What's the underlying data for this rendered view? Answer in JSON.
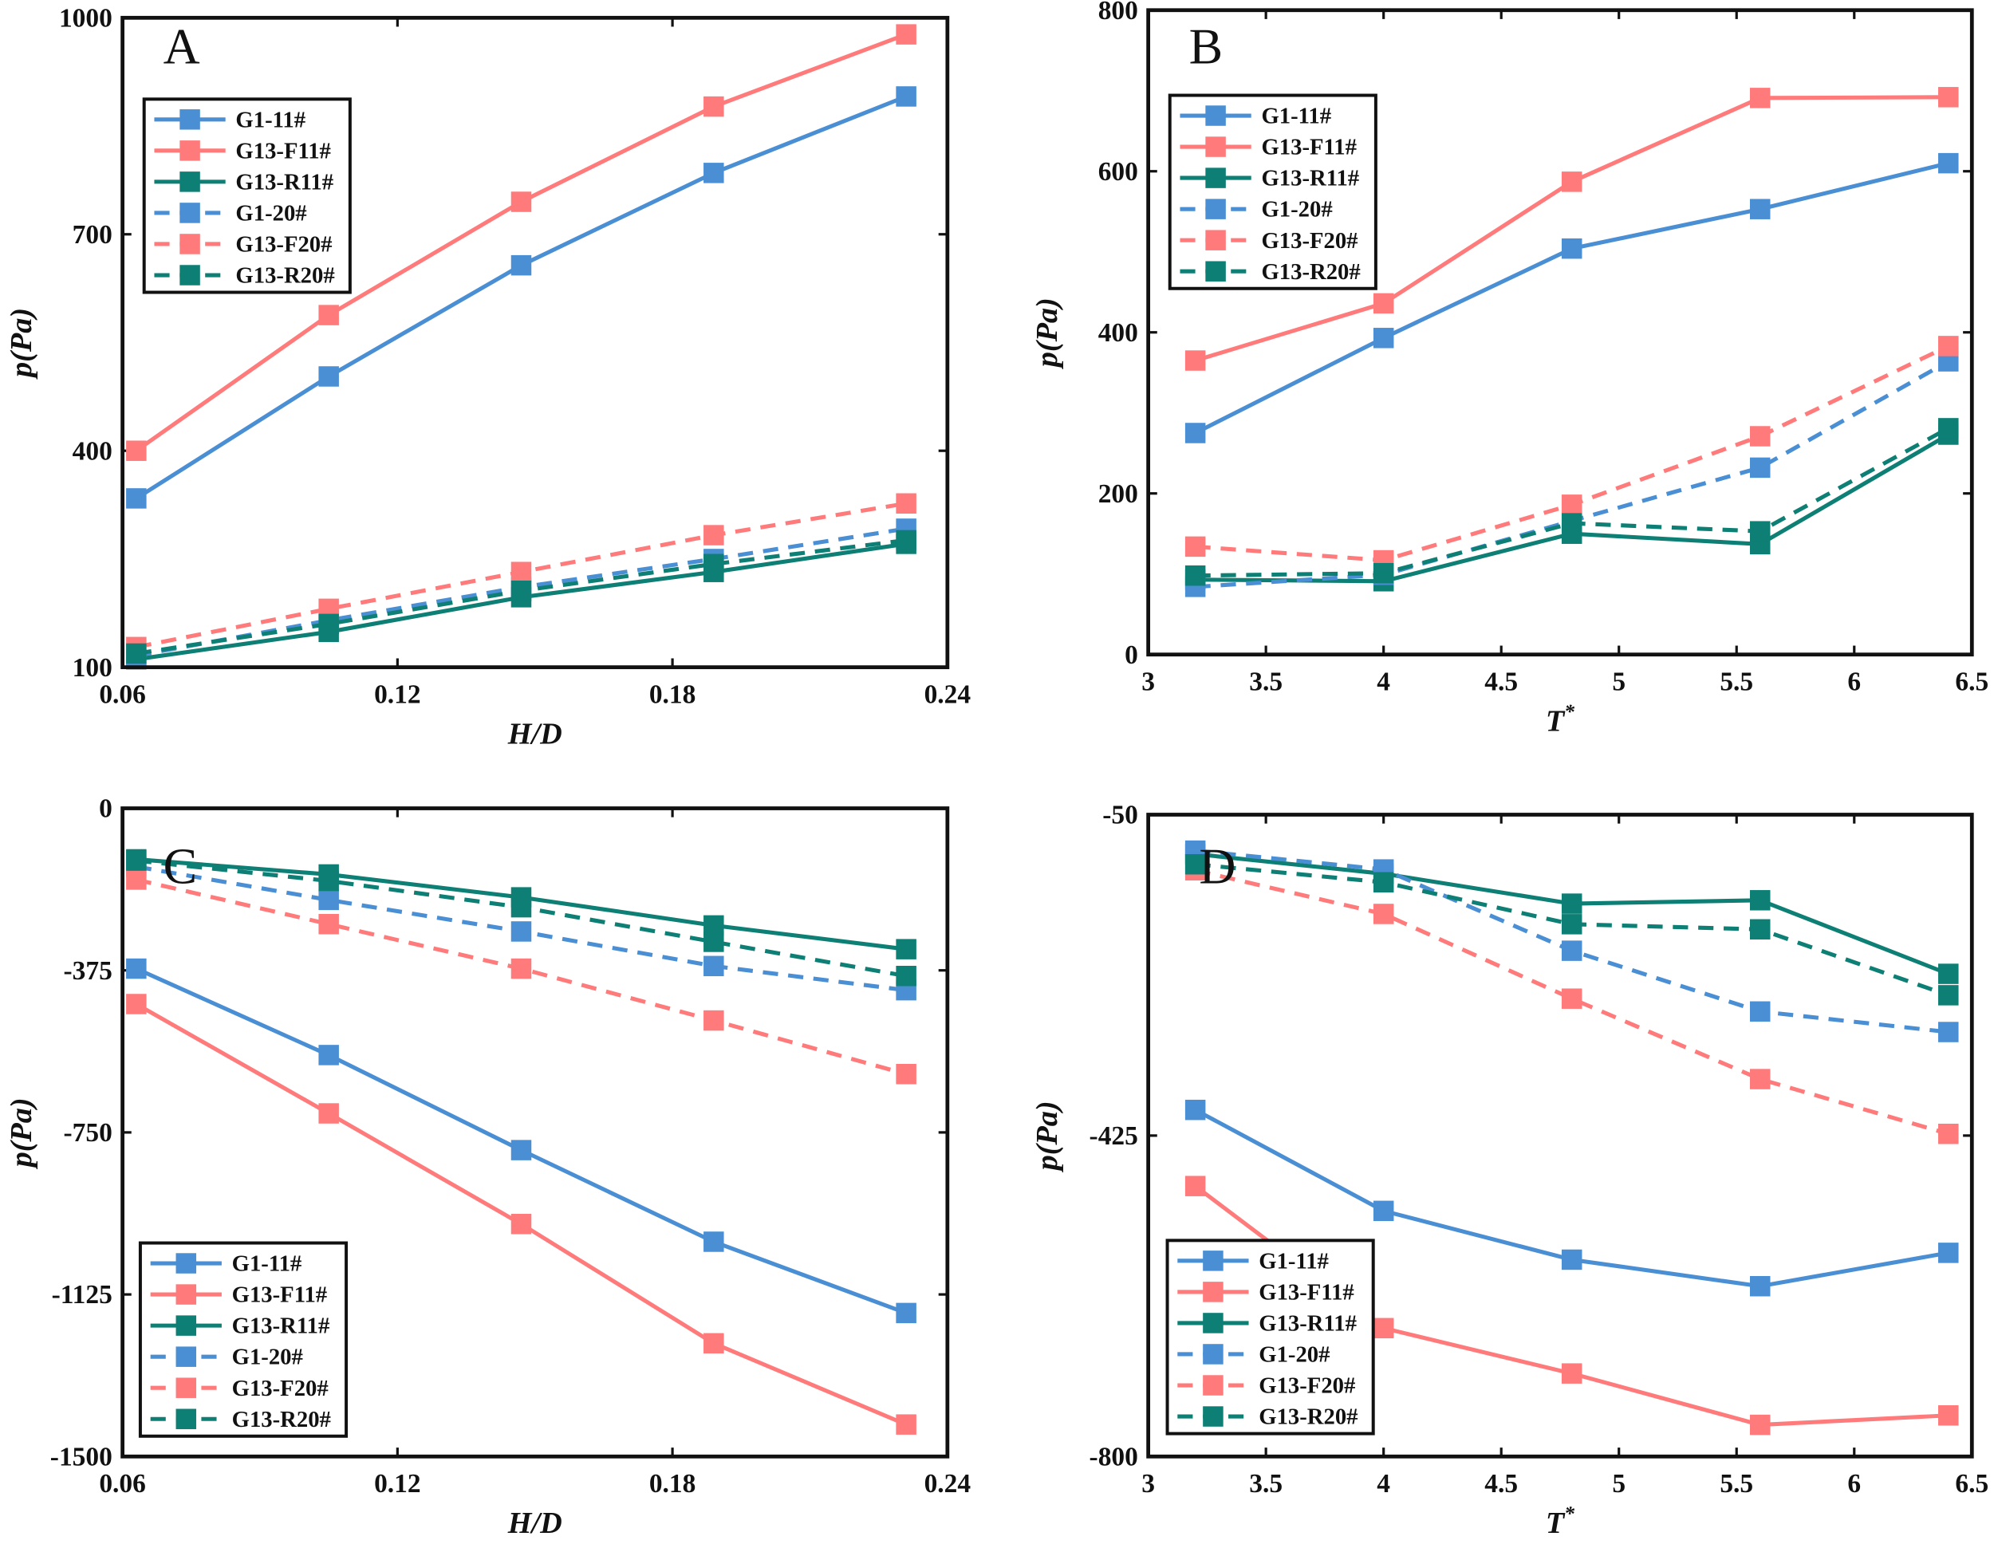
{
  "colors": {
    "G1": "#4a8fd4",
    "F": "#ff7b7b",
    "R": "#0e7f74"
  },
  "chart_data": [
    {
      "panel": "A",
      "type": "line",
      "xlabel": "H/D",
      "ylabel": "p(Pa)",
      "xlim": [
        0.06,
        0.24
      ],
      "ylim": [
        100,
        1000
      ],
      "xticks": [
        "0.06",
        "0.12",
        "0.18",
        "0.24"
      ],
      "xtick_values": [
        0.06,
        0.12,
        0.18,
        0.24
      ],
      "yticks": [
        "100",
        "400",
        "700",
        "1000"
      ],
      "ytick_values": [
        100,
        400,
        700,
        1000
      ],
      "legend": "top-left",
      "x": [
        0.063,
        0.105,
        0.147,
        0.189,
        0.231
      ],
      "series": [
        {
          "name": "G1-11#",
          "color": "G1",
          "dashed": false,
          "values": [
            334,
            503,
            657,
            785,
            891
          ]
        },
        {
          "name": "G13-F11#",
          "color": "F",
          "dashed": false,
          "values": [
            400,
            588,
            745,
            877,
            977
          ]
        },
        {
          "name": "G13-R11#",
          "color": "R",
          "dashed": false,
          "values": [
            111,
            149,
            197,
            232,
            271
          ]
        },
        {
          "name": "G1-20#",
          "color": "G1",
          "dashed": true,
          "values": [
            116,
            165,
            211,
            250,
            292
          ]
        },
        {
          "name": "G13-F20#",
          "color": "F",
          "dashed": true,
          "values": [
            128,
            181,
            232,
            283,
            327
          ]
        },
        {
          "name": "G13-R20#",
          "color": "R",
          "dashed": true,
          "values": [
            119,
            160,
            206,
            243,
            276
          ]
        }
      ]
    },
    {
      "panel": "B",
      "type": "line",
      "xlabel": "T*",
      "ylabel": "p(Pa)",
      "xlim": [
        3,
        6.5
      ],
      "ylim": [
        0,
        800
      ],
      "xticks": [
        "3",
        "3.5",
        "4",
        "4.5",
        "5",
        "5.5",
        "6",
        "6.5"
      ],
      "xtick_values": [
        3,
        3.5,
        4,
        4.5,
        5,
        5.5,
        6,
        6.5
      ],
      "yticks": [
        "0",
        "200",
        "400",
        "600",
        "800"
      ],
      "ytick_values": [
        0,
        200,
        400,
        600,
        800
      ],
      "legend": "top-left",
      "x": [
        3.2,
        4.0,
        4.8,
        5.6,
        6.4
      ],
      "series": [
        {
          "name": "G1-11#",
          "color": "G1",
          "dashed": false,
          "values": [
            275,
            393,
            504,
            553,
            610
          ]
        },
        {
          "name": "G13-F11#",
          "color": "F",
          "dashed": false,
          "values": [
            365,
            436,
            587,
            691,
            692
          ]
        },
        {
          "name": "G13-R11#",
          "color": "R",
          "dashed": false,
          "values": [
            93,
            91,
            150,
            137,
            273
          ]
        },
        {
          "name": "G1-20#",
          "color": "G1",
          "dashed": true,
          "values": [
            84,
            99,
            166,
            232,
            364
          ]
        },
        {
          "name": "G13-F20#",
          "color": "F",
          "dashed": true,
          "values": [
            134,
            117,
            186,
            271,
            383
          ]
        },
        {
          "name": "G13-R20#",
          "color": "R",
          "dashed": true,
          "values": [
            98,
            101,
            163,
            153,
            281
          ]
        }
      ]
    },
    {
      "panel": "C",
      "type": "line",
      "xlabel": "H/D",
      "ylabel": "p(Pa)",
      "xlim": [
        0.06,
        0.24
      ],
      "ylim": [
        -1500,
        0
      ],
      "xticks": [
        "0.06",
        "0.12",
        "0.18",
        "0.24"
      ],
      "xtick_values": [
        0.06,
        0.12,
        0.18,
        0.24
      ],
      "yticks": [
        "-1500",
        "-1125",
        "-750",
        "-375",
        "0"
      ],
      "ytick_values": [
        -1500,
        -1125,
        -750,
        -375,
        0
      ],
      "legend": "bottom-left",
      "x": [
        0.063,
        0.105,
        0.147,
        0.189,
        0.231
      ],
      "series": [
        {
          "name": "G1-11#",
          "color": "G1",
          "dashed": false,
          "values": [
            -371,
            -571,
            -791,
            -1003,
            -1168
          ]
        },
        {
          "name": "G13-F11#",
          "color": "F",
          "dashed": false,
          "values": [
            -453,
            -706,
            -962,
            -1238,
            -1426
          ]
        },
        {
          "name": "G13-R11#",
          "color": "R",
          "dashed": false,
          "values": [
            -118,
            -153,
            -206,
            -271,
            -326
          ]
        },
        {
          "name": "G1-20#",
          "color": "G1",
          "dashed": true,
          "values": [
            -135,
            -212,
            -285,
            -365,
            -421
          ]
        },
        {
          "name": "G13-F20#",
          "color": "F",
          "dashed": true,
          "values": [
            -165,
            -268,
            -371,
            -491,
            -615
          ]
        },
        {
          "name": "G13-R20#",
          "color": "R",
          "dashed": true,
          "values": [
            -121,
            -168,
            -229,
            -309,
            -388
          ]
        }
      ]
    },
    {
      "panel": "D",
      "type": "line",
      "xlabel": "T*",
      "ylabel": "p(Pa)",
      "xlim": [
        3,
        6.5
      ],
      "ylim": [
        -800,
        -50
      ],
      "xticks": [
        "3",
        "3.5",
        "4",
        "4.5",
        "5",
        "5.5",
        "6",
        "6.5"
      ],
      "xtick_values": [
        3,
        3.5,
        4,
        4.5,
        5,
        5.5,
        6,
        6.5
      ],
      "yticks": [
        "-800",
        "-425",
        "-50"
      ],
      "ytick_values": [
        -800,
        -425,
        -50
      ],
      "legend": "bottom-left",
      "x": [
        3.2,
        4.0,
        4.8,
        5.6,
        6.4
      ],
      "series": [
        {
          "name": "G1-11#",
          "color": "G1",
          "dashed": false,
          "values": [
            -395,
            -513,
            -570,
            -601,
            -562
          ]
        },
        {
          "name": "G13-F11#",
          "color": "F",
          "dashed": false,
          "values": [
            -484,
            -650,
            -703,
            -763,
            -752
          ]
        },
        {
          "name": "G13-R11#",
          "color": "R",
          "dashed": false,
          "values": [
            -96,
            -119,
            -154,
            -150,
            -236
          ]
        },
        {
          "name": "G1-20#",
          "color": "G1",
          "dashed": true,
          "values": [
            -92,
            -114,
            -209,
            -280,
            -304
          ]
        },
        {
          "name": "G13-F20#",
          "color": "F",
          "dashed": true,
          "values": [
            -115,
            -166,
            -265,
            -359,
            -423
          ]
        },
        {
          "name": "G13-R20#",
          "color": "R",
          "dashed": true,
          "values": [
            -108,
            -129,
            -178,
            -184,
            -261
          ]
        }
      ]
    }
  ]
}
